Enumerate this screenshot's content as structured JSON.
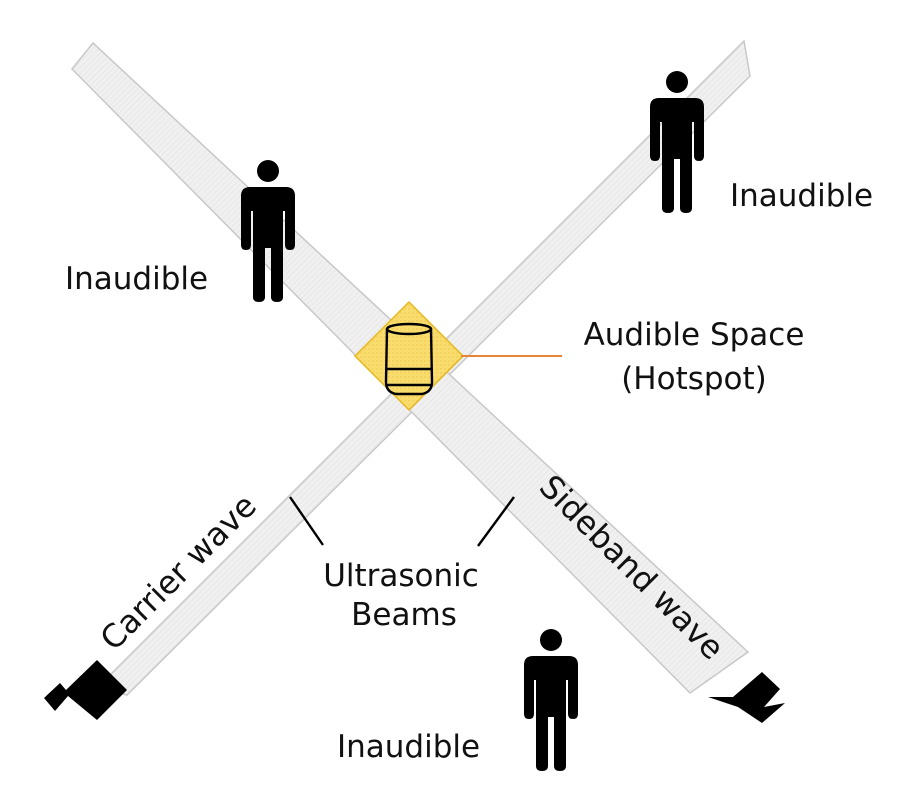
{
  "labels": {
    "inaudible_left": "Inaudible",
    "inaudible_right": "Inaudible",
    "inaudible_bottom": "Inaudible",
    "audible_space_line1": "Audible Space",
    "audible_space_line2": "(Hotspot)",
    "ultrasonic_line1": "Ultrasonic",
    "ultrasonic_line2": "Beams",
    "carrier_wave": "Carrier wave",
    "sideband_wave": "Sideband wave"
  },
  "icons": {
    "person": "person-icon",
    "speaker": "speaker-icon",
    "smart_speaker": "smart-speaker-icon"
  },
  "colors": {
    "beam_fill": "#eeeeee",
    "beam_stroke": "#c8c8c8",
    "hotspot_fill": "#f8dc6e",
    "hotspot_stroke": "#e6b820",
    "leader_line": "#e8853a",
    "ink": "#000000"
  }
}
